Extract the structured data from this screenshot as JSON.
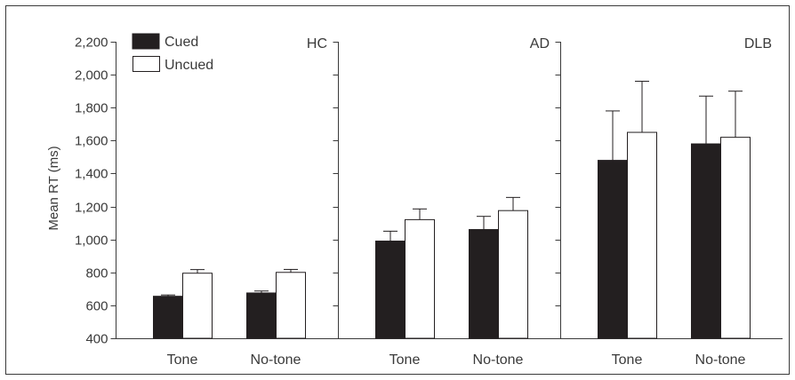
{
  "chart_data": {
    "type": "bar",
    "ylabel": "Mean RT (ms)",
    "ylim": [
      400,
      2200
    ],
    "yticks": [
      "400",
      "600",
      "800",
      "1,000",
      "1,200",
      "1,400",
      "1,600",
      "1,800",
      "2,000",
      "2,200"
    ],
    "ytick_values": [
      400,
      600,
      800,
      1000,
      1200,
      1400,
      1600,
      1800,
      2000,
      2200
    ],
    "legend_position": "top-left",
    "series_names": [
      "Cued",
      "Uncued"
    ],
    "colors": {
      "Cued": "#231f20",
      "Uncued": "#ffffff",
      "axis": "#3a3a3a"
    },
    "panels": [
      {
        "name": "HC",
        "categories": [
          "Tone",
          "No-tone"
        ],
        "series": [
          {
            "name": "Cued",
            "values": [
              655,
              675
            ],
            "errors": [
              8,
              12
            ]
          },
          {
            "name": "Uncued",
            "values": [
              795,
              800
            ],
            "errors": [
              22,
              18
            ]
          }
        ]
      },
      {
        "name": "AD",
        "categories": [
          "Tone",
          "No-tone"
        ],
        "series": [
          {
            "name": "Cued",
            "values": [
              990,
              1060
            ],
            "errors": [
              60,
              80
            ]
          },
          {
            "name": "Uncued",
            "values": [
              1120,
              1175
            ],
            "errors": [
              65,
              80
            ]
          }
        ]
      },
      {
        "name": "DLB",
        "categories": [
          "Tone",
          "No-tone"
        ],
        "series": [
          {
            "name": "Cued",
            "values": [
              1480,
              1580
            ],
            "errors": [
              300,
              290
            ]
          },
          {
            "name": "Uncued",
            "values": [
              1650,
              1620
            ],
            "errors": [
              310,
              280
            ]
          }
        ]
      }
    ]
  }
}
